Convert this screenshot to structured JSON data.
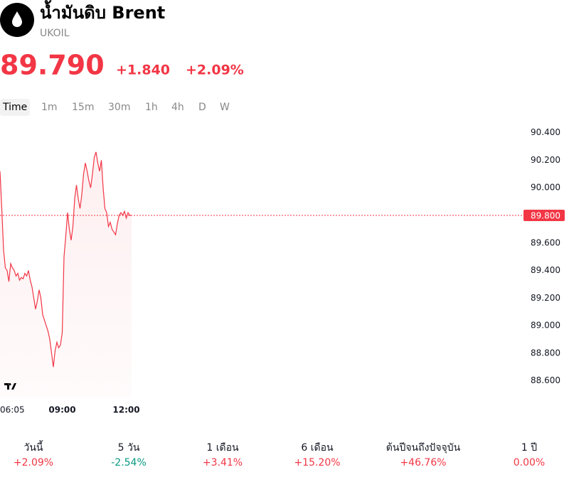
{
  "header": {
    "title": "น้ำมันดิบ Brent",
    "symbol": "UKOIL",
    "price": "89.790",
    "change": "+1.840",
    "change_percent": "+2.09%"
  },
  "timeframes": [
    "Time",
    "1m",
    "15m",
    "30m",
    "1h",
    "4h",
    "D",
    "W"
  ],
  "performance": [
    {
      "period": "วันนี้",
      "value": "+2.09%",
      "color": "#f23645"
    },
    {
      "period": "5 วัน",
      "value": "-2.54%",
      "color": "#089981"
    },
    {
      "period": "1 เดือน",
      "value": "+3.41%",
      "color": "#f23645"
    },
    {
      "period": "6 เดือน",
      "value": "+15.20%",
      "color": "#f23645"
    },
    {
      "period": "ต้นปีจนถึงปัจจุบัน",
      "value": "+46.76%",
      "color": "#f23645"
    },
    {
      "period": "1 ปี",
      "value": "0.00%",
      "color": "#f23645"
    }
  ],
  "chart_data": {
    "type": "line",
    "color": "#f23645",
    "x": [
      "06:05",
      "06:10",
      "06:15",
      "06:20",
      "06:25",
      "06:30",
      "06:35",
      "06:40",
      "06:45",
      "06:50",
      "06:55",
      "07:00",
      "07:05",
      "07:10",
      "07:15",
      "07:20",
      "07:25",
      "07:30",
      "07:35",
      "07:40",
      "07:45",
      "07:50",
      "07:55",
      "08:00",
      "08:05",
      "08:10",
      "08:15",
      "08:20",
      "08:25",
      "08:30",
      "08:35",
      "08:40",
      "08:45",
      "08:50",
      "08:55",
      "09:00",
      "09:05",
      "09:10",
      "09:15",
      "09:20",
      "09:25",
      "09:30",
      "09:35",
      "09:40",
      "09:45",
      "09:50",
      "09:55",
      "10:00",
      "10:05",
      "10:10",
      "10:15",
      "10:20",
      "10:25",
      "10:30",
      "10:35",
      "10:40",
      "10:45",
      "10:50",
      "10:55",
      "11:00",
      "11:05",
      "11:10",
      "11:15",
      "11:20",
      "11:25",
      "11:30",
      "11:35",
      "11:40",
      "11:45",
      "11:50",
      "11:55",
      "12:00",
      "12:05",
      "12:10",
      "12:15"
    ],
    "values": [
      90.12,
      89.85,
      89.55,
      89.42,
      89.4,
      89.32,
      89.45,
      89.42,
      89.4,
      89.36,
      89.38,
      89.33,
      89.35,
      89.34,
      89.38,
      89.36,
      89.4,
      89.33,
      89.28,
      89.2,
      89.12,
      89.18,
      89.26,
      89.2,
      89.08,
      89.04,
      89.0,
      88.96,
      88.9,
      88.8,
      88.7,
      88.82,
      88.88,
      88.84,
      88.86,
      88.95,
      89.5,
      89.65,
      89.82,
      89.7,
      89.62,
      89.72,
      89.92,
      90.02,
      89.92,
      89.85,
      89.95,
      90.1,
      90.18,
      90.12,
      90.05,
      90.0,
      90.1,
      90.22,
      90.26,
      90.18,
      90.12,
      90.2,
      90.0,
      89.85,
      89.82,
      89.72,
      89.75,
      89.7,
      89.68,
      89.66,
      89.74,
      89.8,
      89.82,
      89.8,
      89.83,
      89.78,
      89.82,
      89.8,
      89.8
    ],
    "xticks": [
      "06:05",
      "09:00",
      "12:00"
    ],
    "ylim": [
      88.48,
      90.46
    ],
    "yticks": [
      {
        "value": 88.6,
        "label": "88.600"
      },
      {
        "value": 88.8,
        "label": "88.800"
      },
      {
        "value": 89.0,
        "label": "89.000"
      },
      {
        "value": 89.2,
        "label": "89.200"
      },
      {
        "value": 89.4,
        "label": "89.400"
      },
      {
        "value": 89.6,
        "label": "89.600"
      },
      {
        "value": 90.0,
        "label": "90.000"
      },
      {
        "value": 90.2,
        "label": "90.200"
      },
      {
        "value": 90.4,
        "label": "90.400"
      }
    ],
    "last_price": {
      "value": 89.8,
      "label": "89.800"
    }
  }
}
